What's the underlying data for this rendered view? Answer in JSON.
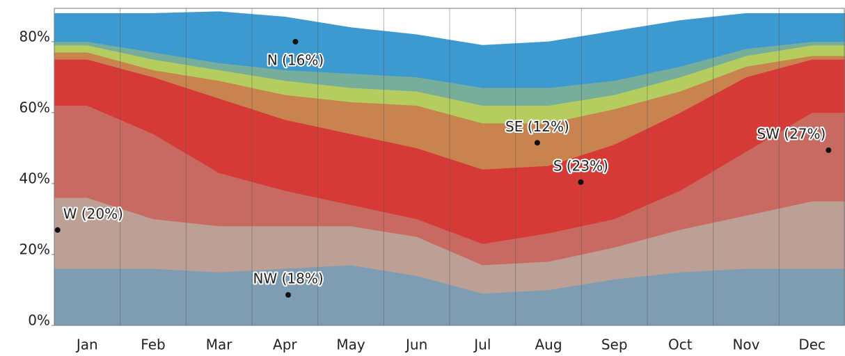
{
  "chart_data": {
    "type": "stacked_area",
    "categories": [
      "Jan",
      "Feb",
      "Mar",
      "Apr",
      "May",
      "Jun",
      "Jul",
      "Aug",
      "Sep",
      "Oct",
      "Nov",
      "Dec"
    ],
    "series": [
      {
        "name": "NW",
        "color": "#7f9db2",
        "values": [
          16,
          16,
          15,
          16,
          17,
          14,
          9,
          10,
          13,
          15,
          16,
          16
        ]
      },
      {
        "name": "W",
        "color": "#bc9f95",
        "values": [
          20,
          14,
          13,
          12,
          11,
          11,
          8,
          8,
          9,
          12,
          15,
          19
        ]
      },
      {
        "name": "SW",
        "color": "#c96a62",
        "values": [
          26,
          24,
          15,
          10,
          6,
          5,
          6,
          8,
          8,
          11,
          18,
          25
        ]
      },
      {
        "name": "S",
        "color": "#d63a37",
        "values": [
          13,
          16,
          21,
          20,
          20,
          20,
          21,
          19,
          21,
          22,
          21,
          15
        ]
      },
      {
        "name": "SE",
        "color": "#c9834f",
        "values": [
          2,
          2,
          5,
          7,
          9,
          12,
          13,
          12,
          10,
          6,
          3,
          1
        ]
      },
      {
        "color": "#b5cd5e",
        "values": [
          2,
          3,
          3,
          4,
          4,
          4,
          5,
          5,
          4,
          4,
          3,
          3
        ]
      },
      {
        "color": "#77ad9b",
        "values": [
          1,
          2,
          2,
          3,
          4,
          4,
          5,
          5,
          4,
          3,
          2,
          1
        ]
      },
      {
        "name": "N",
        "color": "#3d9ad0",
        "values": [
          8,
          11,
          14.5,
          15,
          13,
          12,
          12,
          13,
          14,
          13,
          10,
          8
        ]
      }
    ],
    "annotations": [
      {
        "text": "N (16%)",
        "x": 3.66,
        "y": 80
      },
      {
        "text": "NW (18%)",
        "x": 3.55,
        "y": 8.6
      },
      {
        "text": "SE (12%)",
        "x": 7.33,
        "y": 51.5
      },
      {
        "text": "S (23%)",
        "x": 7.99,
        "y": 40.4
      },
      {
        "text": "SW (27%)",
        "x": 11.75,
        "y": 49.4
      },
      {
        "text": "W (20%)",
        "x": 0.05,
        "y": 26.9
      }
    ],
    "ylim": [
      0,
      89.4
    ],
    "yticks": [
      {
        "value": 0,
        "label": "0%"
      },
      {
        "value": 20,
        "label": "20%"
      },
      {
        "value": 40,
        "label": "40%"
      },
      {
        "value": 60,
        "label": "60%"
      },
      {
        "value": 80,
        "label": "80%"
      }
    ],
    "grid": true
  }
}
